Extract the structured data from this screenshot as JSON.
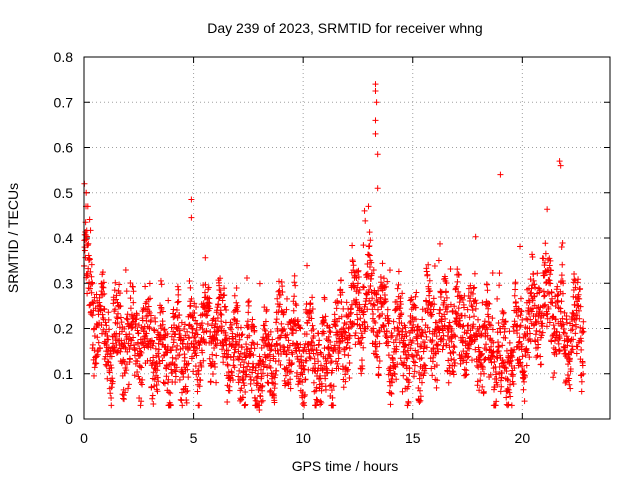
{
  "chart_data": {
    "type": "scatter",
    "title": "Day 239 of 2023, SRMTID for receiver whng",
    "xlabel": "GPS time / hours",
    "ylabel": "SRMTID / TECUs",
    "xlim": [
      0,
      24
    ],
    "ylim": [
      0,
      0.8
    ],
    "xticks": [
      0,
      5,
      10,
      15,
      20
    ],
    "xtick_labels": [
      "0",
      "5",
      "10",
      "15",
      "20"
    ],
    "yticks": [
      0,
      0.1,
      0.2,
      0.3,
      0.4,
      0.5,
      0.6,
      0.7,
      0.8
    ],
    "ytick_labels": [
      "0",
      "0.1",
      "0.2",
      "0.3",
      "0.4",
      "0.5",
      "0.6",
      "0.7",
      "0.8"
    ],
    "grid": true,
    "marker": "+",
    "marker_color": "#ff0000",
    "series": [
      {
        "name": "SRMTID",
        "x_start": 0.0,
        "x_step": 0.0083,
        "approx_level": [
          [
            0.0,
            0.3
          ],
          [
            0.2,
            0.3
          ],
          [
            0.5,
            0.22
          ],
          [
            1.0,
            0.18
          ],
          [
            2.0,
            0.17
          ],
          [
            3.0,
            0.17
          ],
          [
            4.0,
            0.14
          ],
          [
            5.0,
            0.17
          ],
          [
            6.0,
            0.2
          ],
          [
            7.0,
            0.15
          ],
          [
            8.0,
            0.1
          ],
          [
            9.0,
            0.18
          ],
          [
            10.0,
            0.15
          ],
          [
            11.0,
            0.12
          ],
          [
            12.0,
            0.2
          ],
          [
            13.0,
            0.27
          ],
          [
            14.0,
            0.18
          ],
          [
            15.0,
            0.15
          ],
          [
            16.0,
            0.2
          ],
          [
            17.0,
            0.2
          ],
          [
            18.0,
            0.18
          ],
          [
            19.0,
            0.12
          ],
          [
            20.0,
            0.18
          ],
          [
            21.0,
            0.27
          ],
          [
            22.0,
            0.18
          ],
          [
            22.8,
            0.2
          ]
        ],
        "notable_points": [
          [
            0.02,
            0.52
          ],
          [
            0.1,
            0.5
          ],
          [
            4.9,
            0.485
          ],
          [
            4.9,
            0.445
          ],
          [
            13.3,
            0.74
          ],
          [
            13.3,
            0.725
          ],
          [
            13.35,
            0.7
          ],
          [
            13.3,
            0.66
          ],
          [
            13.3,
            0.63
          ],
          [
            13.4,
            0.585
          ],
          [
            13.4,
            0.51
          ],
          [
            12.8,
            0.46
          ],
          [
            19.0,
            0.54
          ],
          [
            21.7,
            0.57
          ],
          [
            21.75,
            0.56
          ],
          [
            8.0,
            0.02
          ]
        ]
      }
    ]
  }
}
